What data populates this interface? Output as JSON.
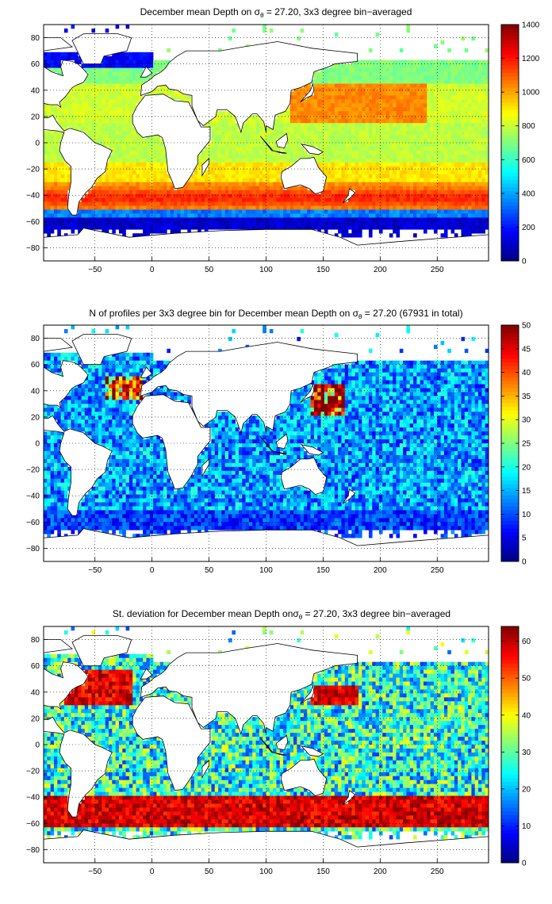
{
  "figure": {
    "panels": [
      {
        "id": "mean",
        "title_pre": "December mean Depth on σ",
        "title_sub": "θ",
        "title_post": " = 27.20, 3x3 degree bin−averaged",
        "colorbar_ticks": [
          "0",
          "200",
          "400",
          "600",
          "800",
          "1000",
          "1200",
          "1400"
        ]
      },
      {
        "id": "count",
        "title_pre": "N of profiles per 3x3 degree bin for December mean Depth on σ",
        "title_sub": "θ",
        "title_post": " = 27.20 (67931 in total)",
        "colorbar_ticks": [
          "0",
          "5",
          "10",
          "15",
          "20",
          "25",
          "30",
          "35",
          "40",
          "45",
          "50"
        ]
      },
      {
        "id": "std",
        "title_pre": "St. deviation for December mean Depth onσ",
        "title_sub": "θ",
        "title_post": " = 27.20, 3x3 degree bin−averaged",
        "colorbar_ticks": [
          "0",
          "10",
          "20",
          "30",
          "40",
          "50",
          "60"
        ]
      }
    ],
    "x_ticks": [
      "−50",
      "0",
      "50",
      "100",
      "150",
      "200",
      "250"
    ],
    "y_ticks": [
      "80",
      "60",
      "40",
      "20",
      "0",
      "−20",
      "−40",
      "−60",
      "−80"
    ]
  },
  "chart_data": [
    {
      "type": "heatmap",
      "title": "December mean Depth on σθ = 27.20, 3x3 degree bin−averaged",
      "xlim": [
        -95,
        295
      ],
      "ylim": [
        -90,
        90
      ],
      "x_ticks": [
        -50,
        0,
        50,
        100,
        150,
        200,
        250
      ],
      "y_ticks": [
        -80,
        -60,
        -40,
        -20,
        0,
        20,
        40,
        60,
        80
      ],
      "colorbar": {
        "range": [
          0,
          1400
        ],
        "ticks": [
          0,
          200,
          400,
          600,
          800,
          1000,
          1200,
          1400
        ],
        "colormap": "jet"
      },
      "grid": true,
      "bin_size_deg": 3,
      "approx_zonal_pattern": [
        {
          "lat_band": "60 to 90 (North Atlantic subpolar)",
          "value": 150
        },
        {
          "lat_band": "20 to 50 (North Pacific subtropical)",
          "value": 1050
        },
        {
          "lat_band": "-20 to 20 (tropics)",
          "value": 800
        },
        {
          "lat_band": "-45 to -30 (Southern Hemisphere subtropical)",
          "value": 1150
        },
        {
          "lat_band": "-55 to -50",
          "value": 400
        },
        {
          "lat_band": "-70 to -58 (Southern Ocean)",
          "value": 80
        }
      ]
    },
    {
      "type": "heatmap",
      "title": "N of profiles per 3x3 degree bin for December mean Depth on σθ = 27.20 (67931 in total)",
      "xlim": [
        -95,
        295
      ],
      "ylim": [
        -90,
        90
      ],
      "x_ticks": [
        -50,
        0,
        50,
        100,
        150,
        200,
        250
      ],
      "y_ticks": [
        -80,
        -60,
        -40,
        -20,
        0,
        20,
        40,
        60,
        80
      ],
      "colorbar": {
        "range": [
          0,
          50
        ],
        "ticks": [
          0,
          5,
          10,
          15,
          20,
          25,
          30,
          35,
          40,
          45,
          50
        ],
        "colormap": "jet"
      },
      "grid": true,
      "bin_size_deg": 3,
      "total_profiles": 67931,
      "approx_zonal_pattern": [
        {
          "lat_band": "Kuroshio region (140-165E, 25-45N)",
          "value": 50
        },
        {
          "lat_band": "North Atlantic (-40 to -10, 35-50N)",
          "value": 45
        },
        {
          "lat_band": "open ocean typical",
          "value": 15
        },
        {
          "lat_band": "Southern Ocean typical",
          "value": 10
        }
      ]
    },
    {
      "type": "heatmap",
      "title": "St. deviation for December mean Depth onσθ = 27.20, 3x3 degree bin−averaged",
      "xlim": [
        -95,
        295
      ],
      "ylim": [
        -90,
        90
      ],
      "x_ticks": [
        -50,
        0,
        50,
        100,
        150,
        200,
        250
      ],
      "y_ticks": [
        -80,
        -60,
        -40,
        -20,
        0,
        20,
        40,
        60,
        80
      ],
      "colorbar": {
        "range": [
          0,
          64
        ],
        "ticks": [
          0,
          10,
          20,
          30,
          40,
          50,
          60
        ],
        "colormap": "jet"
      },
      "grid": true,
      "bin_size_deg": 3,
      "approx_zonal_pattern": [
        {
          "lat_band": "Antarctic Circumpolar Current (-60 to -40)",
          "value": 64
        },
        {
          "lat_band": "Gulf Stream / North Atlantic (30-55N)",
          "value": 64
        },
        {
          "lat_band": "Kuroshio extension (30-45N)",
          "value": 64
        },
        {
          "lat_band": "tropics and subtropics",
          "value": 22
        }
      ]
    }
  ]
}
